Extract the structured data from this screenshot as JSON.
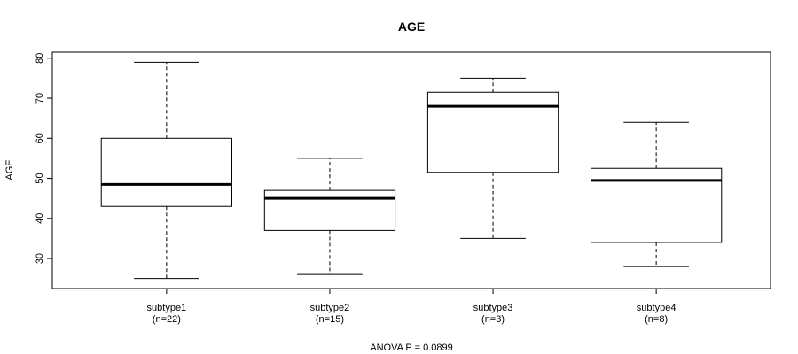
{
  "chart_data": {
    "type": "boxplot",
    "title": "AGE",
    "ylabel": "AGE",
    "xlabel": "ANOVA P = 0.0899",
    "ylim": [
      22.5,
      81.5
    ],
    "yticks": [
      30,
      40,
      50,
      60,
      70,
      80
    ],
    "grid": false,
    "categories": [
      "subtype1",
      "subtype2",
      "subtype3",
      "subtype4"
    ],
    "category_counts": [
      "(n=22)",
      "(n=15)",
      "(n=3)",
      "(n=8)"
    ],
    "boxes": [
      {
        "min": 25,
        "q1": 43,
        "median": 48.5,
        "q3": 60,
        "max": 79
      },
      {
        "min": 26,
        "q1": 37,
        "median": 45,
        "q3": 47,
        "max": 55
      },
      {
        "min": 35,
        "q1": 51.5,
        "median": 68,
        "q3": 71.5,
        "max": 75
      },
      {
        "min": 28,
        "q1": 34,
        "median": 49.5,
        "q3": 52.5,
        "max": 64
      }
    ]
  }
}
